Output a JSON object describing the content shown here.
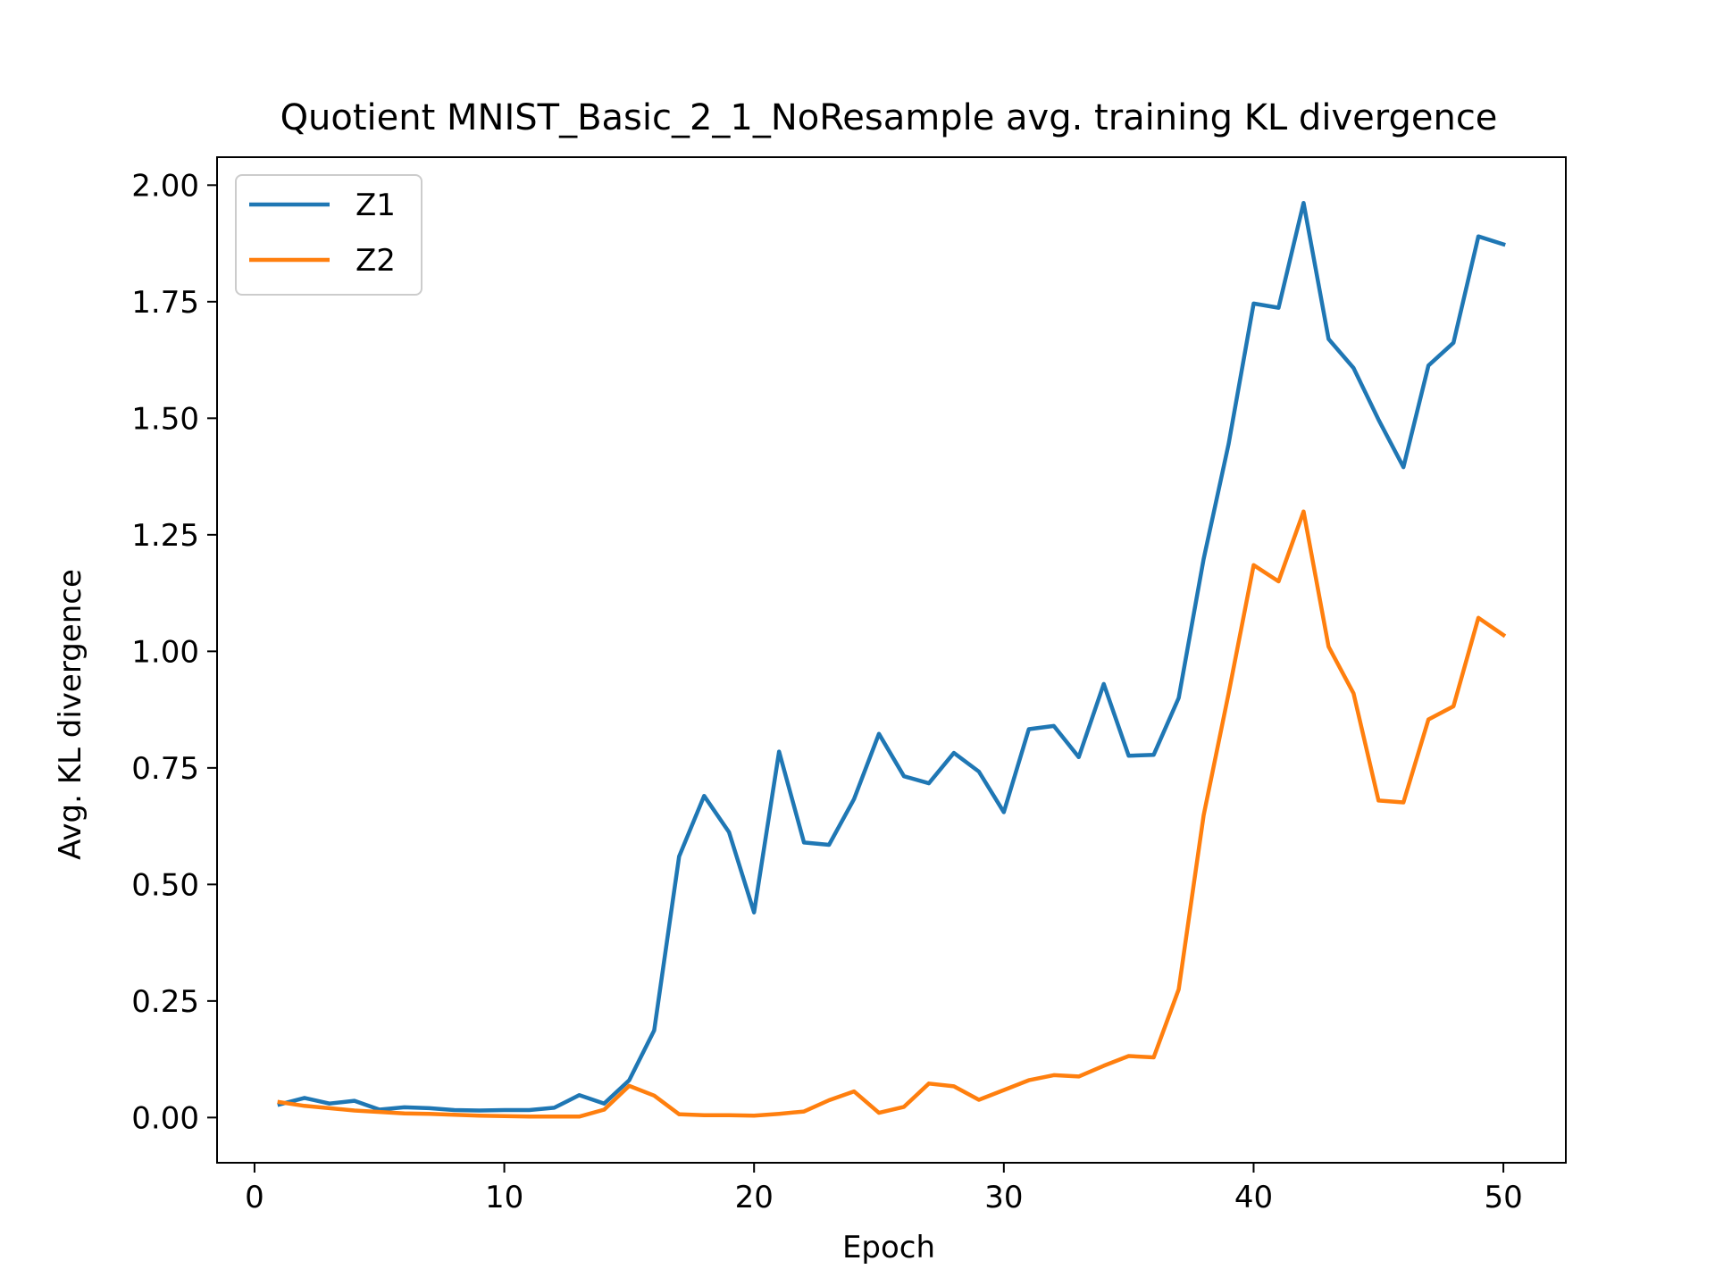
{
  "chart_data": {
    "type": "line",
    "title": "Quotient MNIST_Basic_2_1_NoResample avg. training KL divergence",
    "xlabel": "Epoch",
    "ylabel": "Avg. KL divergence",
    "xlim": [
      -1.5,
      52.5
    ],
    "ylim": [
      -0.097,
      2.06
    ],
    "xticks": [
      0,
      10,
      20,
      30,
      40,
      50
    ],
    "xtick_labels": [
      "0",
      "10",
      "20",
      "30",
      "40",
      "50"
    ],
    "yticks": [
      0.0,
      0.25,
      0.5,
      0.75,
      1.0,
      1.25,
      1.5,
      1.75,
      2.0
    ],
    "ytick_labels": [
      "0.00",
      "0.25",
      "0.50",
      "0.75",
      "1.00",
      "1.25",
      "1.50",
      "1.75",
      "2.00"
    ],
    "grid": false,
    "legend_position": "top-left",
    "x": [
      1,
      2,
      3,
      4,
      5,
      6,
      7,
      8,
      9,
      10,
      11,
      12,
      13,
      14,
      15,
      16,
      17,
      18,
      19,
      20,
      21,
      22,
      23,
      24,
      25,
      26,
      27,
      28,
      29,
      30,
      31,
      32,
      33,
      34,
      35,
      36,
      37,
      38,
      39,
      40,
      41,
      42,
      43,
      44,
      45,
      46,
      47,
      48,
      49,
      50
    ],
    "series": [
      {
        "name": "Z1",
        "color": "#1f77b4",
        "values": [
          0.028,
          0.042,
          0.03,
          0.036,
          0.017,
          0.022,
          0.02,
          0.016,
          0.015,
          0.016,
          0.016,
          0.021,
          0.048,
          0.03,
          0.08,
          0.187,
          0.56,
          0.69,
          0.612,
          0.44,
          0.785,
          0.59,
          0.585,
          0.683,
          0.823,
          0.732,
          0.717,
          0.782,
          0.742,
          0.655,
          0.833,
          0.84,
          0.773,
          0.93,
          0.776,
          0.778,
          0.9,
          1.198,
          1.445,
          1.746,
          1.737,
          1.962,
          1.67,
          1.608,
          1.497,
          1.395,
          1.613,
          1.662,
          1.89,
          1.873
        ]
      },
      {
        "name": "Z2",
        "color": "#ff7f0e",
        "values": [
          0.033,
          0.025,
          0.02,
          0.015,
          0.012,
          0.009,
          0.008,
          0.006,
          0.004,
          0.003,
          0.002,
          0.002,
          0.002,
          0.017,
          0.068,
          0.047,
          0.007,
          0.005,
          0.005,
          0.004,
          0.008,
          0.013,
          0.037,
          0.056,
          0.01,
          0.023,
          0.073,
          0.067,
          0.038,
          0.059,
          0.08,
          0.091,
          0.088,
          0.111,
          0.132,
          0.129,
          0.275,
          0.648,
          0.91,
          1.185,
          1.15,
          1.3,
          1.01,
          0.91,
          0.68,
          0.676,
          0.854,
          0.882,
          1.072,
          1.035
        ]
      }
    ]
  }
}
